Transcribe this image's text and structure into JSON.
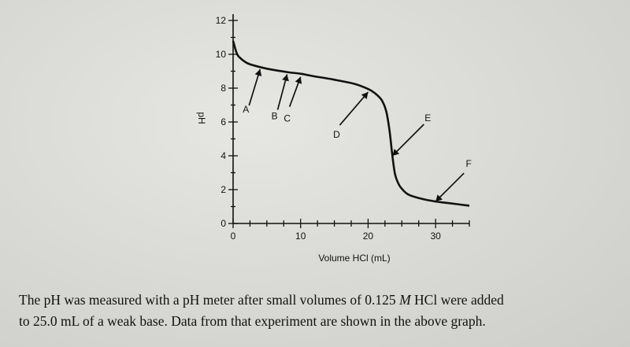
{
  "chart_data": {
    "type": "line",
    "xlabel": "Volume HCl (mL)",
    "ylabel": "pH",
    "xlim": [
      0,
      35
    ],
    "ylim": [
      0,
      12
    ],
    "x_ticks": [
      "0",
      "10",
      "20",
      "30"
    ],
    "y_ticks": [
      "0",
      "2",
      "4",
      "6",
      "8",
      "10",
      "12"
    ],
    "grid": false,
    "series": [
      {
        "x": [
          0,
          0.5,
          1,
          2,
          3,
          5,
          8,
          10,
          12,
          15,
          18,
          20,
          21,
          22,
          22.7,
          23.2,
          23.6,
          24,
          24.5,
          25,
          26,
          28,
          30,
          32,
          35
        ],
        "y": [
          10.8,
          10.1,
          9.8,
          9.5,
          9.35,
          9.15,
          8.95,
          8.85,
          8.7,
          8.5,
          8.25,
          7.95,
          7.7,
          7.3,
          6.6,
          5.4,
          4.0,
          2.9,
          2.35,
          2.05,
          1.7,
          1.45,
          1.3,
          1.2,
          1.05
        ]
      }
    ],
    "annotations": [
      {
        "label": "A",
        "x": 4,
        "y": 9.3
      },
      {
        "label": "B",
        "x": 8,
        "y": 9.0
      },
      {
        "label": "C",
        "x": 10,
        "y": 8.85
      },
      {
        "label": "D",
        "x": 20,
        "y": 7.95
      },
      {
        "label": "E",
        "x": 23.6,
        "y": 4.0
      },
      {
        "label": "F",
        "x": 30,
        "y": 1.3
      }
    ]
  },
  "caption": {
    "line1_pre": "The pH was measured with a pH meter after small volumes of 0.125 ",
    "line1_italic": "M",
    "line1_post": " HCl were added",
    "line2": "to 25.0 mL of a weak base. Data from that experiment are shown in the above graph."
  }
}
